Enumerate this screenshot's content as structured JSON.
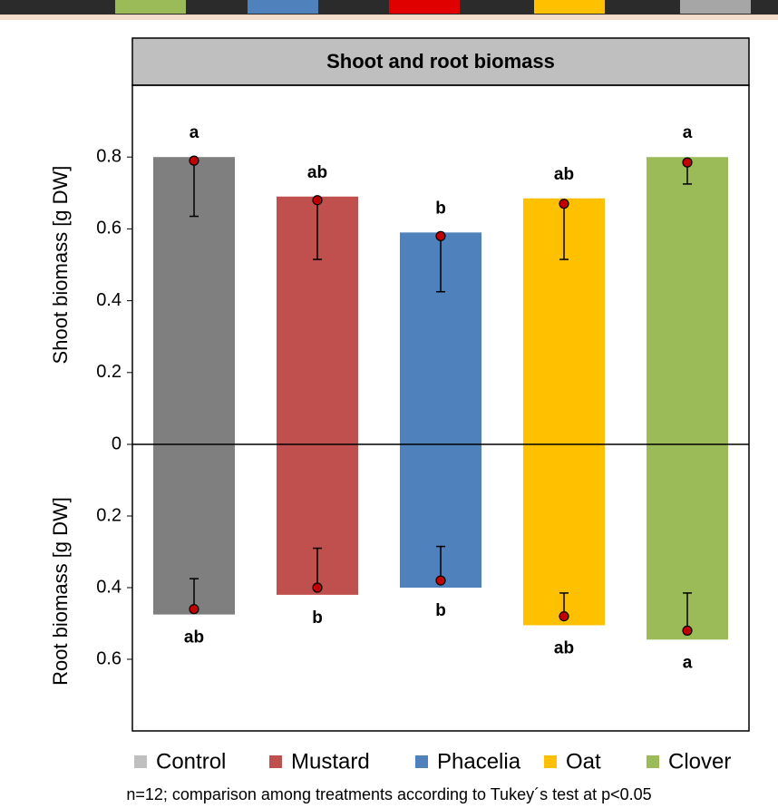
{
  "chart_data": {
    "type": "mirrored_bar",
    "title": "Shoot and root biomass",
    "categories": [
      "Control",
      "Mustard",
      "Phacelia",
      "Oat",
      "Clover"
    ],
    "colors": [
      "#7f7f7f",
      "#c0504d",
      "#4f81bd",
      "#ffc000",
      "#9bbb59"
    ],
    "legend_colors": [
      "#bfbfbf",
      "#c0504d",
      "#4f81bd",
      "#ffc000",
      "#9bbb59"
    ],
    "point_color": "#c00000",
    "panels": [
      {
        "direction": "up",
        "ylabel": "Shoot biomass [g DW]",
        "ylim": [
          0,
          1.0
        ],
        "yticks": [
          0,
          0.2,
          0.4,
          0.6,
          0.8
        ],
        "values": [
          0.8,
          0.69,
          0.59,
          0.685,
          0.8
        ],
        "points": [
          0.79,
          0.68,
          0.58,
          0.67,
          0.785
        ],
        "lower": [
          0.635,
          0.515,
          0.425,
          0.515,
          0.725
        ],
        "letters": [
          "a",
          "ab",
          "b",
          "ab",
          "a"
        ]
      },
      {
        "direction": "down",
        "ylabel": "Root biomass [g DW]",
        "ylim": [
          0,
          0.8
        ],
        "yticks": [
          0.2,
          0.4,
          0.6
        ],
        "values": [
          0.475,
          0.42,
          0.4,
          0.505,
          0.545
        ],
        "points": [
          0.46,
          0.4,
          0.38,
          0.48,
          0.52
        ],
        "lower": [
          0.375,
          0.29,
          0.285,
          0.415,
          0.415
        ],
        "letters": [
          "ab",
          "b",
          "b",
          "ab",
          "a"
        ]
      }
    ],
    "note": "n=12; comparison among treatments according to Tukey´s test at p<0.05"
  }
}
